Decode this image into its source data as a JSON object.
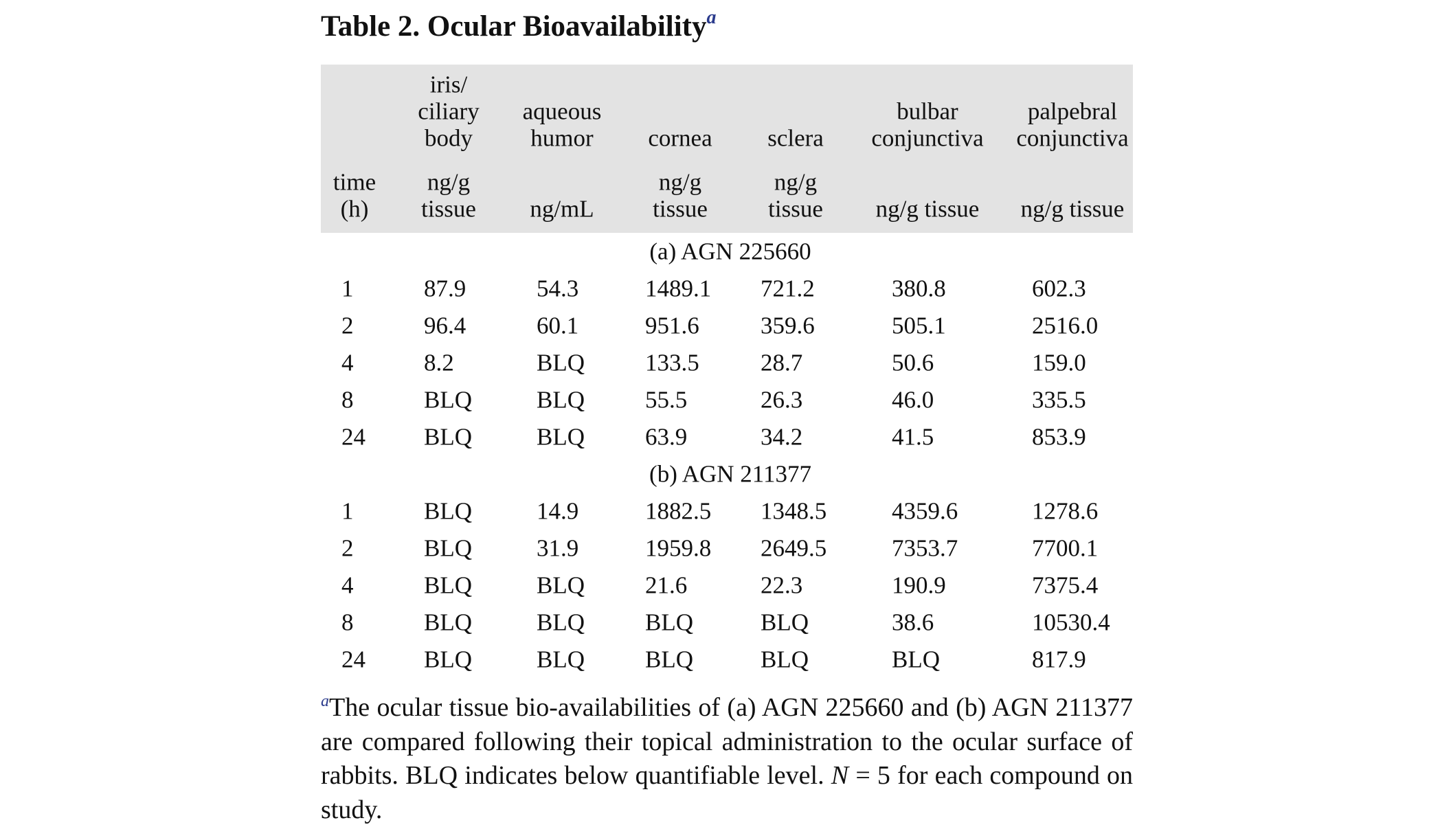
{
  "title": {
    "text": "Table 2. Ocular Bioavailability",
    "footnote_mark": "a"
  },
  "columns": [
    {
      "name": [
        "time"
      ],
      "unit": [
        "time",
        "(h)"
      ]
    },
    {
      "name": [
        "iris/",
        "ciliary",
        "body"
      ],
      "unit": [
        "ng/g",
        "tissue"
      ]
    },
    {
      "name": [
        "aqueous",
        "humor"
      ],
      "unit": [
        "ng/mL"
      ]
    },
    {
      "name": [
        "cornea"
      ],
      "unit": [
        "ng/g",
        "tissue"
      ]
    },
    {
      "name": [
        "sclera"
      ],
      "unit": [
        "ng/g",
        "tissue"
      ]
    },
    {
      "name": [
        "bulbar",
        "conjunctiva"
      ],
      "unit": [
        "ng/g tissue"
      ]
    },
    {
      "name": [
        "palpebral",
        "conjunctiva"
      ],
      "unit": [
        "ng/g tissue"
      ]
    }
  ],
  "sections": [
    {
      "label": "(a) AGN 225660",
      "rows": [
        [
          "1",
          "87.9",
          "54.3",
          "1489.1",
          "721.2",
          "380.8",
          "602.3"
        ],
        [
          "2",
          "96.4",
          "60.1",
          "951.6",
          "359.6",
          "505.1",
          "2516.0"
        ],
        [
          "4",
          "8.2",
          "BLQ",
          "133.5",
          "28.7",
          "50.6",
          "159.0"
        ],
        [
          "8",
          "BLQ",
          "BLQ",
          "55.5",
          "26.3",
          "46.0",
          "335.5"
        ],
        [
          "24",
          "BLQ",
          "BLQ",
          "63.9",
          "34.2",
          "41.5",
          "853.9"
        ]
      ]
    },
    {
      "label": "(b) AGN 211377",
      "rows": [
        [
          "1",
          "BLQ",
          "14.9",
          "1882.5",
          "1348.5",
          "4359.6",
          "1278.6"
        ],
        [
          "2",
          "BLQ",
          "31.9",
          "1959.8",
          "2649.5",
          "7353.7",
          "7700.1"
        ],
        [
          "4",
          "BLQ",
          "BLQ",
          "21.6",
          "22.3",
          "190.9",
          "7375.4"
        ],
        [
          "8",
          "BLQ",
          "BLQ",
          "BLQ",
          "BLQ",
          "38.6",
          "10530.4"
        ],
        [
          "24",
          "BLQ",
          "BLQ",
          "BLQ",
          "BLQ",
          "BLQ",
          "817.9"
        ]
      ]
    }
  ],
  "footnote": {
    "mark": "a",
    "text_before_N": "The ocular tissue bio-availabilities of (a) AGN 225660 and (b) AGN 211377 are compared following their topical administration to the ocular surface of rabbits. BLQ indicates below quantifiable level. ",
    "N": "N",
    "text_after_N": " = 5 for each compound on study."
  }
}
